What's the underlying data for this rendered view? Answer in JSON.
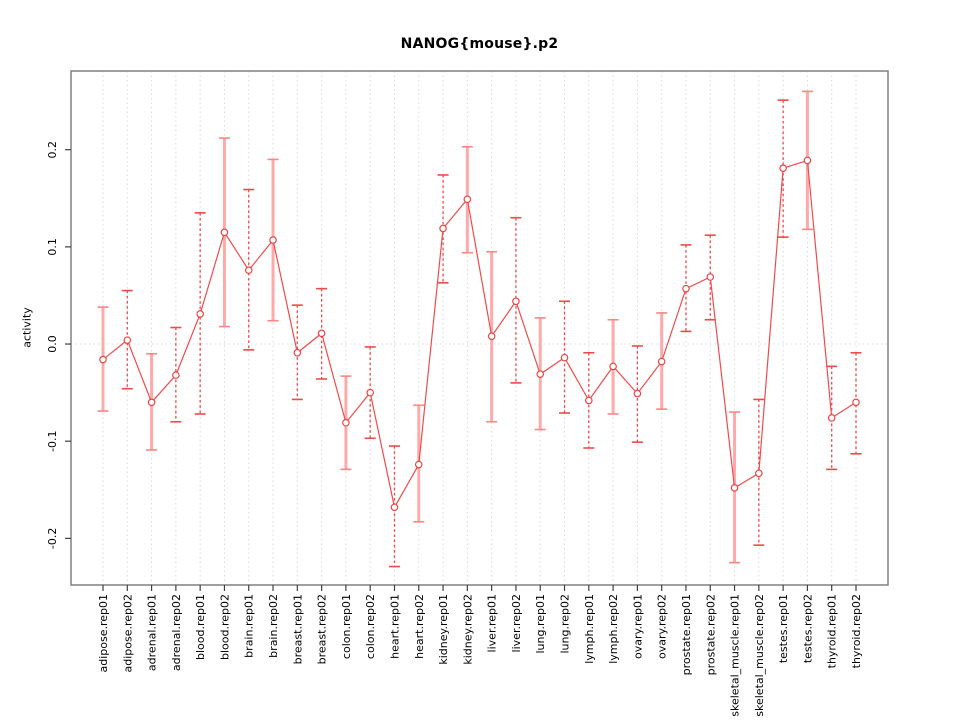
{
  "window": {
    "background": "#ffffff"
  },
  "colors": {
    "main_line": "#f04b4b",
    "marker_stroke": "#e84545",
    "marker_fill": "#ffffff",
    "bar_solid": "#ffaaaa",
    "cap_solid": "#ff8585",
    "bar_dashed": "#ec4b4b",
    "cap_dashed": "#ec4b4b",
    "grid": "#d9d9d9",
    "frame": "#808080",
    "tick": "#404040",
    "text": "#000000"
  },
  "chart_data": {
    "type": "line",
    "title": "NANOG{mouse}.p2",
    "xlabel": "",
    "ylabel": "activity",
    "legend": "none",
    "grid": "vertical dotted gridlines at each category; dotted horizontal reference line at y=0",
    "ylim": [
      -0.248,
      0.281
    ],
    "yticks": [
      0.2,
      0.1,
      0.0,
      -0.1,
      -0.2
    ],
    "marker": "open-circle",
    "error_bars": true,
    "categories": [
      "adipose.rep01",
      "adipose.rep02",
      "adrenal.rep01",
      "adrenal.rep02",
      "blood.rep01",
      "blood.rep02",
      "brain.rep01",
      "brain.rep02",
      "breast.rep01",
      "breast.rep02",
      "colon.rep01",
      "colon.rep02",
      "heart.rep01",
      "heart.rep02",
      "kidney.rep01",
      "kidney.rep02",
      "liver.rep01",
      "liver.rep02",
      "lung.rep01",
      "lung.rep02",
      "lymph.rep01",
      "lymph.rep02",
      "ovary.rep01",
      "ovary.rep02",
      "prostate.rep01",
      "prostate.rep02",
      "skeletal_muscle.rep01",
      "skeletal_muscle.rep02",
      "testes.rep01",
      "testes.rep02",
      "thyroid.rep01",
      "thyroid.rep02"
    ],
    "series": [
      {
        "name": "activity",
        "values": [
          -0.016,
          0.004,
          -0.06,
          -0.032,
          0.031,
          0.115,
          0.076,
          0.107,
          -0.009,
          0.011,
          -0.081,
          -0.05,
          -0.168,
          -0.124,
          0.119,
          0.149,
          0.008,
          0.044,
          -0.031,
          -0.014,
          -0.058,
          -0.023,
          -0.051,
          -0.018,
          0.057,
          0.069,
          -0.148,
          -0.133,
          0.181,
          0.189,
          -0.076,
          -0.06
        ],
        "lower": [
          -0.069,
          -0.046,
          -0.109,
          -0.08,
          -0.072,
          0.018,
          -0.006,
          0.024,
          -0.057,
          -0.036,
          -0.129,
          -0.097,
          -0.229,
          -0.183,
          0.063,
          0.094,
          -0.08,
          -0.04,
          -0.088,
          -0.071,
          -0.107,
          -0.072,
          -0.101,
          -0.067,
          0.013,
          0.025,
          -0.225,
          -0.207,
          0.11,
          0.118,
          -0.129,
          -0.113
        ],
        "upper": [
          0.038,
          0.055,
          -0.01,
          0.017,
          0.135,
          0.212,
          0.159,
          0.19,
          0.04,
          0.057,
          -0.033,
          -0.003,
          -0.105,
          -0.063,
          0.174,
          0.203,
          0.095,
          0.13,
          0.027,
          0.044,
          -0.009,
          0.025,
          -0.002,
          0.032,
          0.102,
          0.112,
          -0.07,
          -0.057,
          0.251,
          0.26,
          -0.023,
          -0.009
        ],
        "bar_styles": [
          "solid",
          "dashed",
          "solid",
          "dashed",
          "dashed",
          "solid",
          "dashed",
          "solid",
          "dashed",
          "dashed",
          "solid",
          "dashed",
          "dashed",
          "solid",
          "dashed",
          "solid",
          "solid",
          "dashed",
          "solid",
          "dashed",
          "dashed",
          "solid",
          "dashed",
          "solid",
          "dashed",
          "dashed",
          "solid",
          "dashed",
          "dashed",
          "solid",
          "dashed",
          "dashed"
        ]
      }
    ]
  }
}
